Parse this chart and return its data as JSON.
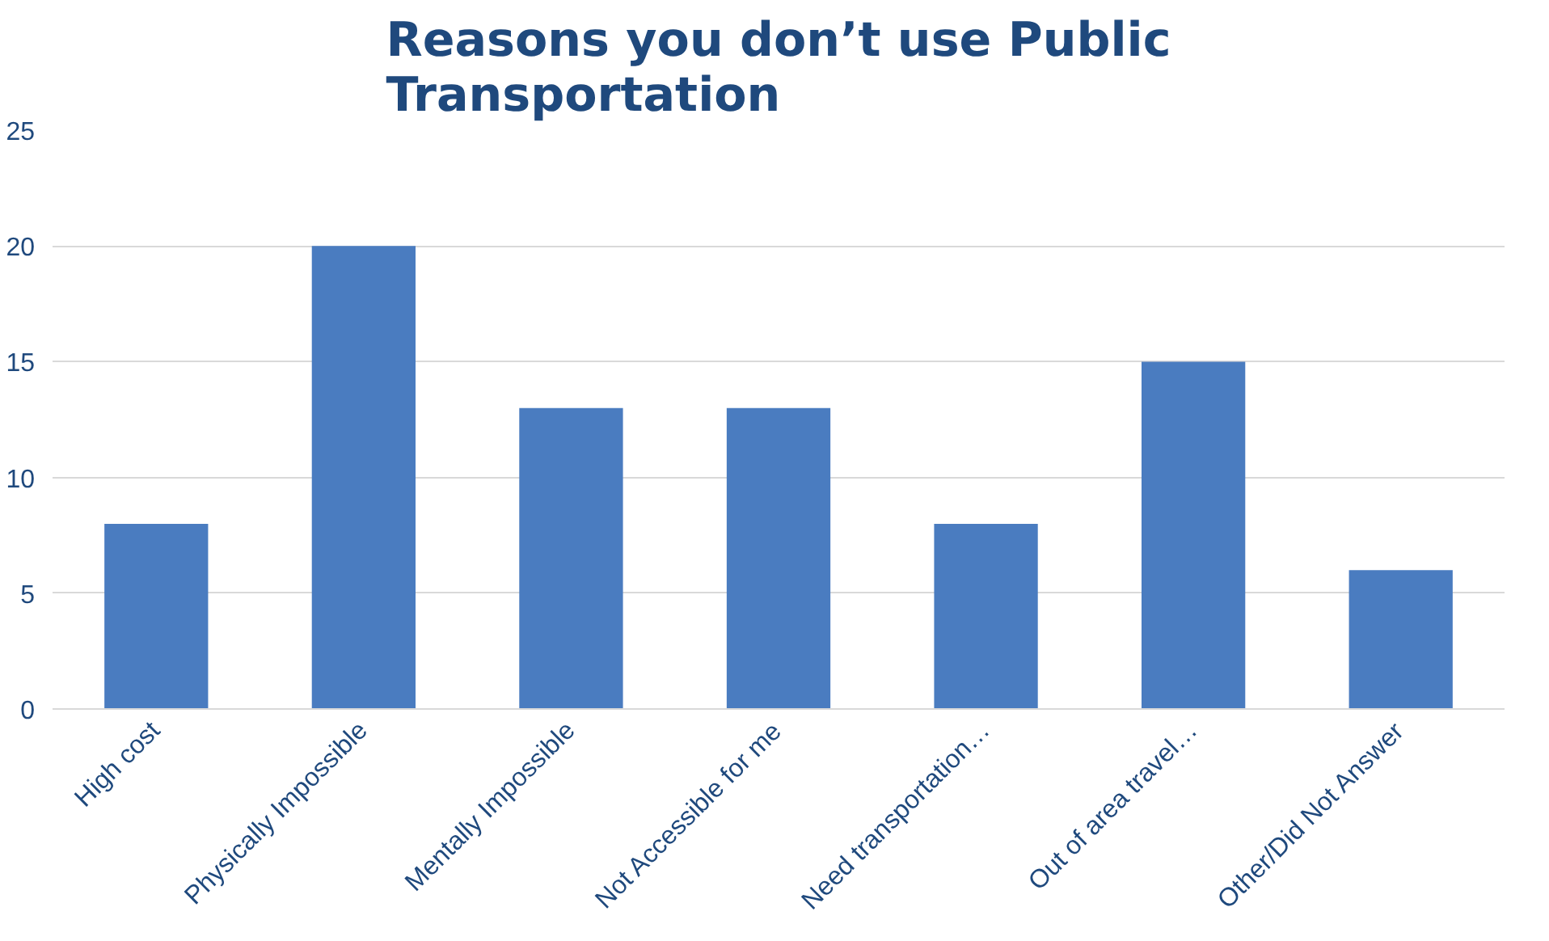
{
  "chart_data": {
    "type": "bar",
    "title": "Reasons you don’t use Public Transportation",
    "categories": [
      "High cost",
      "Physically Impossible",
      "Mentally Impossible",
      "Not Accessible for me",
      "Need transportation…",
      "Out of area travel…",
      "Other/Did Not Answer"
    ],
    "values": [
      8,
      20,
      13,
      13,
      8,
      15,
      6
    ],
    "color": "#4a7cc0",
    "ylim": [
      0,
      25
    ],
    "yticks": [
      0,
      5,
      10,
      15,
      20,
      25
    ],
    "grid": "y"
  }
}
